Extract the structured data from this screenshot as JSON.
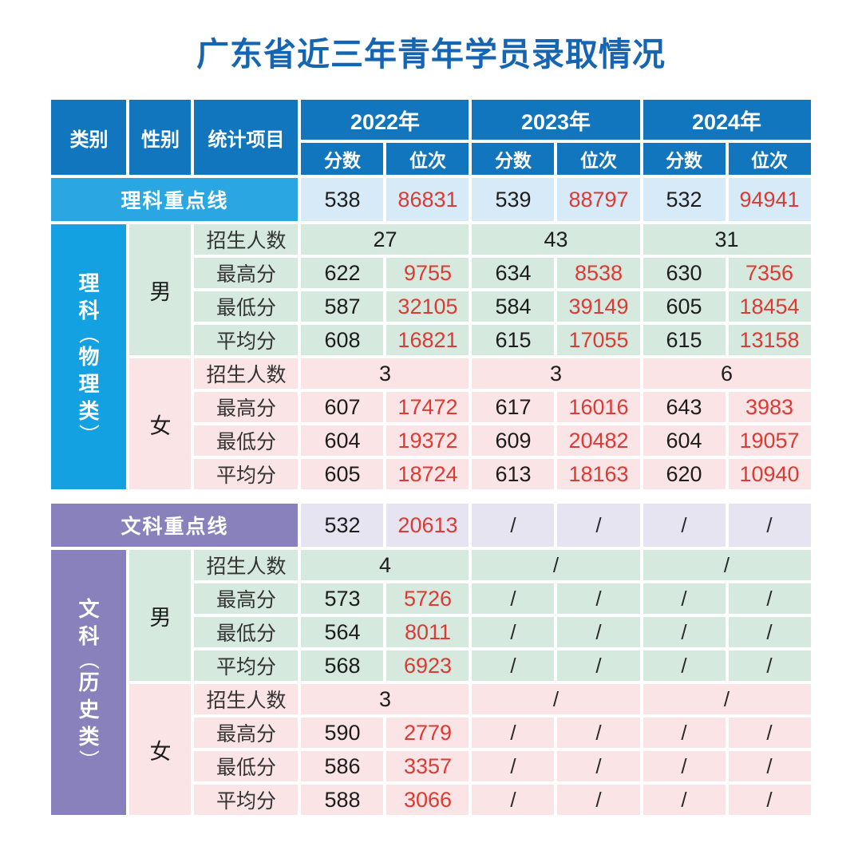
{
  "title": "广东省近三年青年学员录取情况",
  "header": {
    "category": "类别",
    "gender": "性别",
    "stat": "统计项目",
    "years": [
      "2022年",
      "2023年",
      "2024年"
    ],
    "score": "分数",
    "rank": "位次"
  },
  "science": {
    "keyline": {
      "label": "理科重点线",
      "cells": [
        "538",
        "86831",
        "539",
        "88797",
        "532",
        "94941"
      ]
    },
    "category": "理科（物理类）",
    "male": {
      "gender": "男",
      "enroll": {
        "label": "招生人数",
        "values": [
          "27",
          "43",
          "31"
        ]
      },
      "rows": [
        {
          "label": "最高分",
          "cells": [
            "622",
            "9755",
            "634",
            "8538",
            "630",
            "7356"
          ]
        },
        {
          "label": "最低分",
          "cells": [
            "587",
            "32105",
            "584",
            "39149",
            "605",
            "18454"
          ]
        },
        {
          "label": "平均分",
          "cells": [
            "608",
            "16821",
            "615",
            "17055",
            "615",
            "13158"
          ]
        }
      ]
    },
    "female": {
      "gender": "女",
      "enroll": {
        "label": "招生人数",
        "values": [
          "3",
          "3",
          "6"
        ]
      },
      "rows": [
        {
          "label": "最高分",
          "cells": [
            "607",
            "17472",
            "617",
            "16016",
            "643",
            "3983"
          ]
        },
        {
          "label": "最低分",
          "cells": [
            "604",
            "19372",
            "609",
            "20482",
            "604",
            "19057"
          ]
        },
        {
          "label": "平均分",
          "cells": [
            "605",
            "18724",
            "613",
            "18163",
            "620",
            "10940"
          ]
        }
      ]
    }
  },
  "arts": {
    "keyline": {
      "label": "文科重点线",
      "cells": [
        "532",
        "20613",
        "/",
        "/",
        "/",
        "/"
      ]
    },
    "category": "文科（历史类）",
    "male": {
      "gender": "男",
      "enroll": {
        "label": "招生人数",
        "values": [
          "4",
          "/",
          "/"
        ]
      },
      "rows": [
        {
          "label": "最高分",
          "cells": [
            "573",
            "5726",
            "/",
            "/",
            "/",
            "/"
          ]
        },
        {
          "label": "最低分",
          "cells": [
            "564",
            "8011",
            "/",
            "/",
            "/",
            "/"
          ]
        },
        {
          "label": "平均分",
          "cells": [
            "568",
            "6923",
            "/",
            "/",
            "/",
            "/"
          ]
        }
      ]
    },
    "female": {
      "gender": "女",
      "enroll": {
        "label": "招生人数",
        "values": [
          "3",
          "/",
          "/"
        ]
      },
      "rows": [
        {
          "label": "最高分",
          "cells": [
            "590",
            "2779",
            "/",
            "/",
            "/",
            "/"
          ]
        },
        {
          "label": "最低分",
          "cells": [
            "586",
            "3357",
            "/",
            "/",
            "/",
            "/"
          ]
        },
        {
          "label": "平均分",
          "cells": [
            "588",
            "3066",
            "/",
            "/",
            "/",
            "/"
          ]
        }
      ]
    }
  },
  "colors": {
    "title_blue": "#1665B2",
    "header_blue": "#1276BE",
    "science_keyline_blue": "#2AA7E2",
    "science_category_blue": "#14A1E1",
    "light_blue_bg": "#D6EAF8",
    "male_green_bg": "#D6E9DF",
    "female_pink_bg": "#FBE4E5",
    "arts_purple": "#8881BC",
    "light_purple_bg": "#E7E4F2",
    "rank_red": "#DD3A33",
    "score_black": "#1D1D1D"
  },
  "chart_data": {
    "type": "table",
    "title": "广东省近三年青年学员录取情况",
    "columns": [
      "类别",
      "性别",
      "统计项目",
      "2022年 分数",
      "2022年 位次",
      "2023年 分数",
      "2023年 位次",
      "2024年 分数",
      "2024年 位次"
    ],
    "rows": [
      [
        "理科重点线",
        "",
        "",
        "538",
        "86831",
        "539",
        "88797",
        "532",
        "94941"
      ],
      [
        "理科（物理类）",
        "男",
        "招生人数",
        "27",
        "",
        "43",
        "",
        "31",
        ""
      ],
      [
        "理科（物理类）",
        "男",
        "最高分",
        "622",
        "9755",
        "634",
        "8538",
        "630",
        "7356"
      ],
      [
        "理科（物理类）",
        "男",
        "最低分",
        "587",
        "32105",
        "584",
        "39149",
        "605",
        "18454"
      ],
      [
        "理科（物理类）",
        "男",
        "平均分",
        "608",
        "16821",
        "615",
        "17055",
        "615",
        "13158"
      ],
      [
        "理科（物理类）",
        "女",
        "招生人数",
        "3",
        "",
        "3",
        "",
        "6",
        ""
      ],
      [
        "理科（物理类）",
        "女",
        "最高分",
        "607",
        "17472",
        "617",
        "16016",
        "643",
        "3983"
      ],
      [
        "理科（物理类）",
        "女",
        "最低分",
        "604",
        "19372",
        "609",
        "20482",
        "604",
        "19057"
      ],
      [
        "理科（物理类）",
        "女",
        "平均分",
        "605",
        "18724",
        "613",
        "18163",
        "620",
        "10940"
      ],
      [
        "文科重点线",
        "",
        "",
        "532",
        "20613",
        "/",
        "/",
        "/",
        "/"
      ],
      [
        "文科（历史类）",
        "男",
        "招生人数",
        "4",
        "",
        "/",
        "",
        "/",
        ""
      ],
      [
        "文科（历史类）",
        "男",
        "最高分",
        "573",
        "5726",
        "/",
        "/",
        "/",
        "/"
      ],
      [
        "文科（历史类）",
        "男",
        "最低分",
        "564",
        "8011",
        "/",
        "/",
        "/",
        "/"
      ],
      [
        "文科（历史类）",
        "男",
        "平均分",
        "568",
        "6923",
        "/",
        "/",
        "/",
        "/"
      ],
      [
        "文科（历史类）",
        "女",
        "招生人数",
        "3",
        "",
        "/",
        "",
        "/",
        ""
      ],
      [
        "文科（历史类）",
        "女",
        "最高分",
        "590",
        "2779",
        "/",
        "/",
        "/",
        "/"
      ],
      [
        "文科（历史类）",
        "女",
        "最低分",
        "586",
        "3357",
        "/",
        "/",
        "/",
        "/"
      ],
      [
        "文科（历史类）",
        "女",
        "平均分",
        "588",
        "3066",
        "/",
        "/",
        "/",
        "/"
      ]
    ],
    "legend_position": "none",
    "grid": "white cell gaps on white background"
  }
}
